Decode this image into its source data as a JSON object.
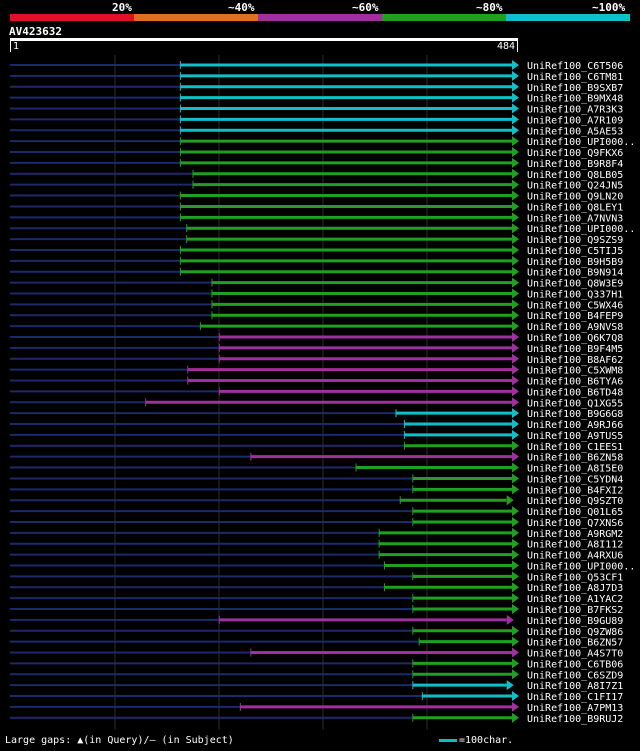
{
  "legend": {
    "percent_labels": [
      "20%",
      "~40%",
      "~60%",
      "~80%",
      "~100%"
    ],
    "colors": [
      "#e0102a",
      "#e07020",
      "#a030a0",
      "#20a020",
      "#10c0c8"
    ]
  },
  "query": {
    "id": "AV423632",
    "start": "1",
    "end": "484"
  },
  "chart_data": {
    "type": "alignment",
    "query_length": 484,
    "hits": [
      {
        "name": "UniRef100_C6T506",
        "color": "cyan",
        "start": 163,
        "end": 484,
        "arrow": true
      },
      {
        "name": "UniRef100_C6TM81",
        "color": "cyan",
        "start": 163,
        "end": 484,
        "arrow": true
      },
      {
        "name": "UniRef100_B9SXB7",
        "color": "cyan",
        "start": 163,
        "end": 484,
        "arrow": true
      },
      {
        "name": "UniRef100_B9MX48",
        "color": "cyan",
        "start": 163,
        "end": 484,
        "arrow": true
      },
      {
        "name": "UniRef100_A7R3K3",
        "color": "cyan",
        "start": 163,
        "end": 484,
        "arrow": true
      },
      {
        "name": "UniRef100_A7R109",
        "color": "cyan",
        "start": 163,
        "end": 484,
        "arrow": true
      },
      {
        "name": "UniRef100_A5AE53",
        "color": "cyan",
        "start": 163,
        "end": 484,
        "arrow": true
      },
      {
        "name": "UniRef100_UPI000..",
        "color": "green",
        "start": 163,
        "end": 484,
        "arrow": true
      },
      {
        "name": "UniRef100_Q9FKX6",
        "color": "green",
        "start": 163,
        "end": 484,
        "arrow": true
      },
      {
        "name": "UniRef100_B9R8F4",
        "color": "green",
        "start": 163,
        "end": 484,
        "arrow": true
      },
      {
        "name": "UniRef100_Q8LB05",
        "color": "green",
        "start": 175,
        "end": 484,
        "arrow": true
      },
      {
        "name": "UniRef100_Q24JN5",
        "color": "green",
        "start": 175,
        "end": 484,
        "arrow": true
      },
      {
        "name": "UniRef100_Q9LN20",
        "color": "green",
        "start": 163,
        "end": 484,
        "arrow": true
      },
      {
        "name": "UniRef100_Q8LEY1",
        "color": "green",
        "start": 163,
        "end": 484,
        "arrow": true
      },
      {
        "name": "UniRef100_A7NVN3",
        "color": "green",
        "start": 163,
        "end": 484,
        "arrow": true
      },
      {
        "name": "UniRef100_UPI000..",
        "color": "green",
        "start": 169,
        "end": 484,
        "arrow": true
      },
      {
        "name": "UniRef100_Q9SZS9",
        "color": "green",
        "start": 169,
        "end": 484,
        "arrow": true
      },
      {
        "name": "UniRef100_C5TIJ5",
        "color": "green",
        "start": 163,
        "end": 484,
        "arrow": true
      },
      {
        "name": "UniRef100_B9H5B9",
        "color": "green",
        "start": 163,
        "end": 484,
        "arrow": true
      },
      {
        "name": "UniRef100_B9N914",
        "color": "green",
        "start": 163,
        "end": 484,
        "arrow": true
      },
      {
        "name": "UniRef100_Q8W3E9",
        "color": "green",
        "start": 193,
        "end": 484,
        "arrow": true
      },
      {
        "name": "UniRef100_Q337H1",
        "color": "green",
        "start": 193,
        "end": 484,
        "arrow": true
      },
      {
        "name": "UniRef100_C5WX46",
        "color": "green",
        "start": 193,
        "end": 484,
        "arrow": true
      },
      {
        "name": "UniRef100_B4FEP9",
        "color": "green",
        "start": 193,
        "end": 484,
        "arrow": true
      },
      {
        "name": "UniRef100_A9NVS8",
        "color": "green",
        "start": 182,
        "end": 484,
        "arrow": true
      },
      {
        "name": "UniRef100_Q6K7Q8",
        "color": "purple",
        "start": 200,
        "end": 484,
        "arrow": true
      },
      {
        "name": "UniRef100_B9F4M5",
        "color": "purple",
        "start": 200,
        "end": 484,
        "arrow": true
      },
      {
        "name": "UniRef100_B8AF62",
        "color": "purple",
        "start": 200,
        "end": 484,
        "arrow": true
      },
      {
        "name": "UniRef100_C5XWM8",
        "color": "purple",
        "start": 170,
        "end": 484,
        "arrow": true
      },
      {
        "name": "UniRef100_B6TYA6",
        "color": "purple",
        "start": 170,
        "end": 484,
        "arrow": true
      },
      {
        "name": "UniRef100_B6TD48",
        "color": "purple",
        "start": 200,
        "end": 484,
        "arrow": true
      },
      {
        "name": "UniRef100_Q1XG55",
        "color": "purple",
        "start": 130,
        "end": 484,
        "arrow": true
      },
      {
        "name": "UniRef100_B9G6G8",
        "color": "cyan",
        "start": 368,
        "end": 484,
        "arrow": true
      },
      {
        "name": "UniRef100_A9RJ66",
        "color": "cyan",
        "start": 376,
        "end": 484,
        "arrow": true
      },
      {
        "name": "UniRef100_A9TUS5",
        "color": "cyan",
        "start": 376,
        "end": 484,
        "arrow": true
      },
      {
        "name": "UniRef100_C1EES1",
        "color": "green",
        "start": 376,
        "end": 484,
        "arrow": true
      },
      {
        "name": "UniRef100_B6ZN58",
        "color": "purple",
        "start": 230,
        "end": 484,
        "arrow": true
      },
      {
        "name": "UniRef100_A8I5E0",
        "color": "green",
        "start": 330,
        "end": 484,
        "arrow": true
      },
      {
        "name": "UniRef100_C5YDN4",
        "color": "green",
        "start": 384,
        "end": 484,
        "arrow": true
      },
      {
        "name": "UniRef100_B4FXI2",
        "color": "green",
        "start": 384,
        "end": 484,
        "arrow": true
      },
      {
        "name": "UniRef100_Q9SZT0",
        "color": "green",
        "start": 372,
        "end": 479,
        "arrow": true
      },
      {
        "name": "UniRef100_Q01L65",
        "color": "green",
        "start": 384,
        "end": 484,
        "arrow": true
      },
      {
        "name": "UniRef100_Q7XNS6",
        "color": "green",
        "start": 384,
        "end": 484,
        "arrow": true
      },
      {
        "name": "UniRef100_A9RGM2",
        "color": "green",
        "start": 352,
        "end": 484,
        "arrow": true
      },
      {
        "name": "UniRef100_A8I112",
        "color": "green",
        "start": 352,
        "end": 484,
        "arrow": true
      },
      {
        "name": "UniRef100_A4RXU6",
        "color": "green",
        "start": 352,
        "end": 484,
        "arrow": true
      },
      {
        "name": "UniRef100_UPI000..",
        "color": "green",
        "start": 357,
        "end": 484,
        "arrow": true
      },
      {
        "name": "UniRef100_Q53CF1",
        "color": "green",
        "start": 384,
        "end": 484,
        "arrow": true
      },
      {
        "name": "UniRef100_A8J7D3",
        "color": "green",
        "start": 357,
        "end": 484,
        "arrow": true
      },
      {
        "name": "UniRef100_A1YAC2",
        "color": "green",
        "start": 384,
        "end": 484,
        "arrow": true
      },
      {
        "name": "UniRef100_B7FKS2",
        "color": "green",
        "start": 384,
        "end": 484,
        "arrow": true
      },
      {
        "name": "UniRef100_B9GU89",
        "color": "purple",
        "start": 200,
        "end": 479,
        "arrow": true
      },
      {
        "name": "UniRef100_Q9ZW86",
        "color": "green",
        "start": 384,
        "end": 484,
        "arrow": true
      },
      {
        "name": "UniRef100_B6ZN57",
        "color": "green",
        "start": 390,
        "end": 484,
        "arrow": true
      },
      {
        "name": "UniRef100_A4S7T0",
        "color": "purple",
        "start": 230,
        "end": 484,
        "arrow": true
      },
      {
        "name": "UniRef100_C6TB06",
        "color": "green",
        "start": 384,
        "end": 484,
        "arrow": true
      },
      {
        "name": "UniRef100_C6SZD9",
        "color": "green",
        "start": 384,
        "end": 484,
        "arrow": true
      },
      {
        "name": "UniRef100_A8I7Z1",
        "color": "cyan",
        "start": 384,
        "end": 479,
        "arrow": true
      },
      {
        "name": "UniRef100_C1FI17",
        "color": "cyan",
        "start": 393,
        "end": 484,
        "arrow": true
      },
      {
        "name": "UniRef100_A7PM13",
        "color": "purple",
        "start": 220,
        "end": 484,
        "arrow": true
      },
      {
        "name": "UniRef100_B9RUJ2",
        "color": "green",
        "start": 384,
        "end": 484,
        "arrow": true
      }
    ]
  },
  "footer": {
    "gaps_text": "Large gaps: ▲(in Query)/— (in Subject)",
    "scale_text": "=100char."
  }
}
